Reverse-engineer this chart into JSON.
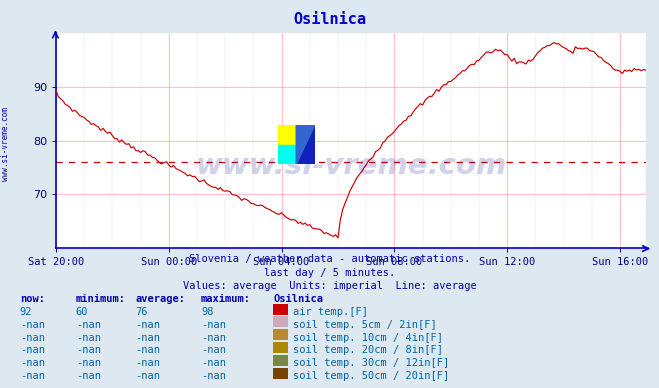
{
  "title": "Osilnica",
  "bg_color": "#dde8f0",
  "plot_bg_color": "#ffffff",
  "line_color": "#cc0000",
  "avg_value": 76,
  "grid_color_major": "#ffcccc",
  "grid_color_minor": "#ffeeee",
  "ylim": [
    60,
    100
  ],
  "yticks": [
    70,
    80,
    90
  ],
  "xtick_labels": [
    "Sat 20:00",
    "Sun 00:00",
    "Sun 04:00",
    "Sun 08:00",
    "Sun 12:00",
    "Sun 16:00"
  ],
  "subtitle1": "Slovenia / weather data - automatic stations.",
  "subtitle2": "last day / 5 minutes.",
  "subtitle3": "Values: average  Units: imperial  Line: average",
  "watermark": "www.si-vreme.com",
  "side_label": "www.si-vreme.com",
  "table_header": [
    "now:",
    "minimum:",
    "average:",
    "maximum:",
    "Osilnica"
  ],
  "table_rows": [
    [
      "92",
      "60",
      "76",
      "98",
      "#cc0000",
      "air temp.[F]"
    ],
    [
      "-nan",
      "-nan",
      "-nan",
      "-nan",
      "#ccaabb",
      "soil temp. 5cm / 2in[F]"
    ],
    [
      "-nan",
      "-nan",
      "-nan",
      "-nan",
      "#bb8833",
      "soil temp. 10cm / 4in[F]"
    ],
    [
      "-nan",
      "-nan",
      "-nan",
      "-nan",
      "#aa8800",
      "soil temp. 20cm / 8in[F]"
    ],
    [
      "-nan",
      "-nan",
      "-nan",
      "-nan",
      "#778844",
      "soil temp. 30cm / 12in[F]"
    ],
    [
      "-nan",
      "-nan",
      "-nan",
      "-nan",
      "#774400",
      "soil temp. 50cm / 20in[F]"
    ]
  ]
}
